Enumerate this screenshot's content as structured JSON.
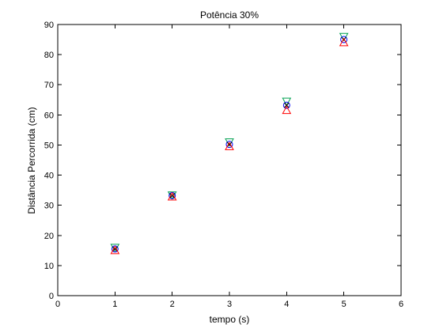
{
  "chart_data": {
    "type": "scatter",
    "title": "Potência 30%",
    "xlabel": "tempo (s)",
    "ylabel": "Distância Percorrida (cm)",
    "xlim": [
      0,
      6
    ],
    "ylim": [
      0,
      90
    ],
    "xticks": [
      0,
      1,
      2,
      3,
      4,
      5,
      6
    ],
    "yticks": [
      0,
      10,
      20,
      30,
      40,
      50,
      60,
      70,
      80,
      90
    ],
    "grid": false,
    "legend": "none",
    "series": [
      {
        "marker": "triangle-down",
        "color": "#00a050",
        "x": [
          1,
          2,
          3,
          4,
          5
        ],
        "y": [
          16,
          33.4,
          51,
          64.5,
          86
        ]
      },
      {
        "marker": "circle",
        "color": "#0000ff",
        "x": [
          1,
          2,
          3,
          4,
          5
        ],
        "y": [
          15.5,
          33.2,
          50.2,
          63.2,
          85
        ]
      },
      {
        "marker": "x",
        "color": "#000000",
        "x": [
          1,
          2,
          3,
          4,
          5
        ],
        "y": [
          15.5,
          33.2,
          50.2,
          63.2,
          85
        ]
      },
      {
        "marker": "triangle-up",
        "color": "#ff0000",
        "x": [
          1,
          2,
          3,
          4,
          5
        ],
        "y": [
          15,
          32.8,
          49.5,
          61.5,
          84
        ]
      }
    ]
  }
}
